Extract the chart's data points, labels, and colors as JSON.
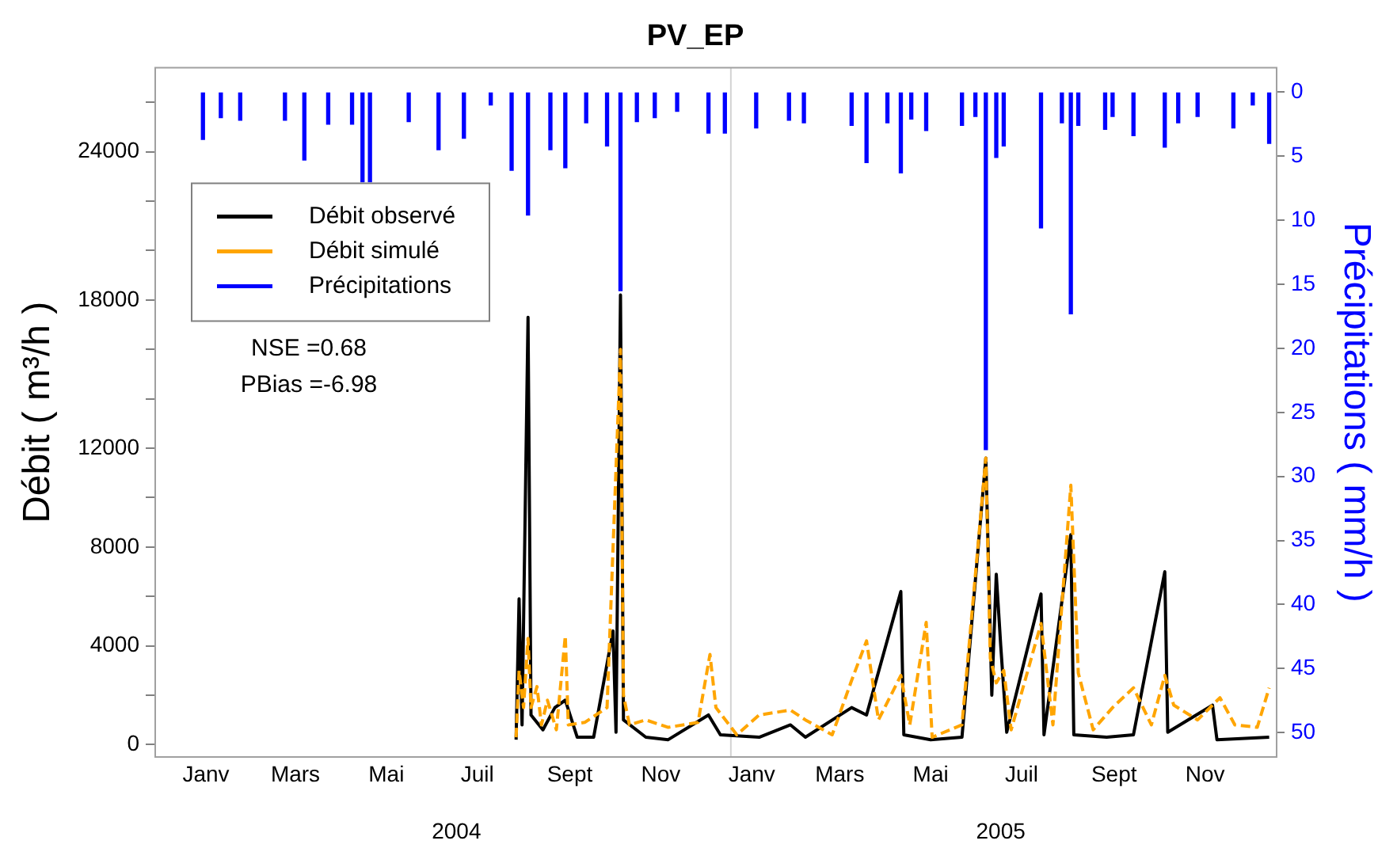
{
  "chart_data": {
    "type": "line",
    "title": "PV_EP",
    "ylabel": "Débit ( m³/h )",
    "y2label": "Précipitations ( mm/h )",
    "xlim": [
      "2003-12-12",
      "2006-01-02"
    ],
    "xticks": [
      {
        "value": "2004-01-15",
        "label": "Janv"
      },
      {
        "value": "2004-03-15",
        "label": "Mars"
      },
      {
        "value": "2004-05-15",
        "label": "Mai"
      },
      {
        "value": "2004-07-15",
        "label": "Juil"
      },
      {
        "value": "2004-09-15",
        "label": "Sept"
      },
      {
        "value": "2004-11-15",
        "label": "Nov"
      },
      {
        "value": "2005-01-15",
        "label": "Janv"
      },
      {
        "value": "2005-03-15",
        "label": "Mars"
      },
      {
        "value": "2005-05-15",
        "label": "Mai"
      },
      {
        "value": "2005-07-15",
        "label": "Juil"
      },
      {
        "value": "2005-09-15",
        "label": "Sept"
      },
      {
        "value": "2005-11-15",
        "label": "Nov"
      }
    ],
    "x2lim": [
      "2003-12-12",
      "2006-01-02"
    ],
    "x2ticks": [
      {
        "value": "2004-07-01",
        "label": "2004"
      },
      {
        "value": "2005-07-01",
        "label": "2005"
      }
    ],
    "ylim": [
      -500,
      27400
    ],
    "yticks": [
      0,
      {
        "value": 2000,
        "label": null
      },
      4000,
      {
        "value": 6000,
        "label": null
      },
      8000,
      {
        "value": 10000,
        "label": null
      },
      12000,
      {
        "value": 14000,
        "label": null
      },
      {
        "value": 16000,
        "label": null
      },
      18000,
      {
        "value": 20000,
        "label": null
      },
      {
        "value": 22000,
        "label": null
      },
      24000,
      {
        "value": 26000,
        "label": null
      }
    ],
    "y2lim": [
      51.9,
      -1.9
    ],
    "y2ticks": [
      0,
      5,
      10,
      15,
      20,
      25,
      30,
      35,
      40,
      45,
      50
    ],
    "grid": false,
    "legend": "top left",
    "marker": "none",
    "annotations": [
      "NSE =0.68",
      "PBias =-6.98"
    ],
    "ref_lines": [
      {
        "axis": "x",
        "value": "2005-01-01",
        "color": "#d3d3d3"
      }
    ],
    "series": [
      {
        "name": "Débit observé",
        "color": "#000000",
        "line_style": "solid",
        "x": [
          "2004-08-10",
          "2004-08-12",
          "2004-08-14",
          "2004-08-18",
          "2004-08-20",
          "2004-08-28",
          "2004-09-05",
          "2004-09-12",
          "2004-09-20",
          "2004-10-01",
          "2004-10-14",
          "2004-10-16",
          "2004-10-19",
          "2004-10-21",
          "2004-11-05",
          "2004-11-20",
          "2004-12-17",
          "2004-12-25",
          "2005-01-20",
          "2005-02-10",
          "2005-02-20",
          "2005-03-23",
          "2005-04-02",
          "2005-04-25",
          "2005-04-27",
          "2005-05-15",
          "2005-06-05",
          "2005-06-21",
          "2005-06-25",
          "2005-06-28",
          "2005-07-01",
          "2005-07-05",
          "2005-07-28",
          "2005-07-30",
          "2005-08-17",
          "2005-08-19",
          "2005-09-10",
          "2005-09-28",
          "2005-10-19",
          "2005-10-21",
          "2005-11-20",
          "2005-11-23",
          "2005-12-28"
        ],
        "values": [
          200,
          5900,
          800,
          17300,
          1200,
          600,
          1500,
          1800,
          300,
          300,
          4600,
          500,
          18200,
          1000,
          300,
          200,
          1200,
          400,
          300,
          800,
          300,
          1500,
          1200,
          6200,
          400,
          200,
          300,
          11600,
          2000,
          6900,
          4000,
          500,
          6100,
          400,
          8500,
          400,
          300,
          400,
          7000,
          500,
          1600,
          200,
          300
        ]
      },
      {
        "name": "Débit simulé",
        "color": "#ffa500",
        "line_style": "dashed",
        "x": [
          "2004-08-10",
          "2004-08-12",
          "2004-08-15",
          "2004-08-18",
          "2004-08-20",
          "2004-08-24",
          "2004-08-27",
          "2004-08-31",
          "2004-09-06",
          "2004-09-12",
          "2004-09-14",
          "2004-09-25",
          "2004-10-10",
          "2004-10-19",
          "2004-10-21",
          "2004-10-25",
          "2004-11-05",
          "2004-11-20",
          "2004-12-10",
          "2004-12-18",
          "2004-12-22",
          "2005-01-05",
          "2005-01-20",
          "2005-02-10",
          "2005-02-20",
          "2005-03-10",
          "2005-03-23",
          "2005-04-02",
          "2005-04-10",
          "2005-04-25",
          "2005-05-01",
          "2005-05-12",
          "2005-05-16",
          "2005-06-05",
          "2005-06-21",
          "2005-06-24",
          "2005-06-28",
          "2005-07-03",
          "2005-07-08",
          "2005-07-28",
          "2005-08-05",
          "2005-08-17",
          "2005-08-22",
          "2005-09-01",
          "2005-09-14",
          "2005-09-28",
          "2005-10-10",
          "2005-10-19",
          "2005-10-25",
          "2005-11-10",
          "2005-11-25",
          "2005-12-05",
          "2005-12-20",
          "2005-12-28"
        ],
        "values": [
          300,
          3000,
          1500,
          4300,
          1500,
          2350,
          800,
          1800,
          600,
          4400,
          800,
          900,
          1500,
          16000,
          2000,
          800,
          1000,
          700,
          900,
          3650,
          1500,
          400,
          1200,
          1400,
          1000,
          400,
          2600,
          4200,
          1000,
          2800,
          800,
          4950,
          300,
          800,
          11600,
          3500,
          2500,
          3000,
          600,
          4900,
          800,
          10500,
          2900,
          600,
          1500,
          2300,
          800,
          2800,
          1600,
          1000,
          1900,
          800,
          700,
          2300
        ]
      },
      {
        "name": "Précipitations",
        "type": "bar",
        "axis": "y2",
        "color": "#0000ff",
        "x": [
          "2004-01-13",
          "2004-01-25",
          "2004-02-07",
          "2004-03-08",
          "2004-03-21",
          "2004-04-06",
          "2004-04-22",
          "2004-04-29",
          "2004-05-04",
          "2004-05-30",
          "2004-06-19",
          "2004-07-06",
          "2004-07-24",
          "2004-08-07",
          "2004-08-18",
          "2004-09-02",
          "2004-09-12",
          "2004-09-26",
          "2004-10-10",
          "2004-10-19",
          "2004-10-30",
          "2004-11-11",
          "2004-11-26",
          "2004-12-17",
          "2004-12-28",
          "2005-01-18",
          "2005-02-09",
          "2005-02-19",
          "2005-03-23",
          "2005-04-02",
          "2005-04-16",
          "2005-04-25",
          "2005-05-02",
          "2005-05-12",
          "2005-06-05",
          "2005-06-14",
          "2005-06-21",
          "2005-06-28",
          "2005-07-03",
          "2005-07-28",
          "2005-08-11",
          "2005-08-17",
          "2005-08-22",
          "2005-09-09",
          "2005-09-14",
          "2005-09-28",
          "2005-10-19",
          "2005-10-28",
          "2005-11-10",
          "2005-12-04",
          "2005-12-17",
          "2005-12-28"
        ],
        "values": [
          3.7,
          2.0,
          2.2,
          2.2,
          5.3,
          2.5,
          2.5,
          7.0,
          7.0,
          2.3,
          4.5,
          3.6,
          1.0,
          6.1,
          9.6,
          4.5,
          5.9,
          2.4,
          4.2,
          15.5,
          2.3,
          2.0,
          1.5,
          3.2,
          3.2,
          2.8,
          2.2,
          2.4,
          2.6,
          5.5,
          2.4,
          6.3,
          2.1,
          3.0,
          2.6,
          1.9,
          27.9,
          5.1,
          4.2,
          10.6,
          2.4,
          17.3,
          2.6,
          2.9,
          1.9,
          3.4,
          4.3,
          2.4,
          1.9,
          2.8,
          1.0,
          4.0
        ]
      }
    ]
  }
}
